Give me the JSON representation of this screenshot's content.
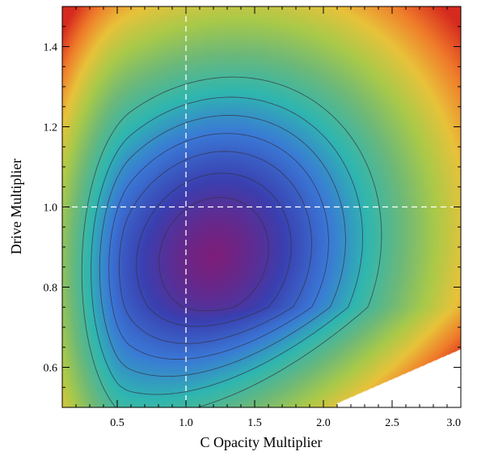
{
  "chart_data": {
    "type": "heatmap",
    "title": "",
    "xlabel": "C Opacity Multiplier",
    "ylabel": "Drive Multiplier",
    "xlim": [
      0.1,
      3.0
    ],
    "ylim": [
      0.5,
      1.5
    ],
    "x_ticks": [
      0.5,
      1.0,
      1.5,
      2.0,
      2.5,
      3.0
    ],
    "x_tick_labels": [
      "0.5",
      "1.0",
      "1.5",
      "2.0",
      "2.5",
      "3.0"
    ],
    "y_ticks": [
      0.6,
      0.8,
      1.0,
      1.2,
      1.4
    ],
    "y_tick_labels": [
      "0.6",
      "0.8",
      "1.0",
      "1.2",
      "1.4"
    ],
    "reference_lines": {
      "x": 1.0,
      "y": 1.0,
      "color": "#ffffff",
      "style": "dashed"
    },
    "colormap": [
      "#7b1e7a",
      "#3a3fb0",
      "#3a78d6",
      "#2fb6b0",
      "#6bb87a",
      "#a8c94a",
      "#e8c23a",
      "#ef7b2a",
      "#d62a1e"
    ],
    "minimum": {
      "x": 1.2,
      "y": 0.87
    },
    "contour_levels": [
      0.5,
      1.0,
      1.6,
      2.2,
      2.9,
      3.7,
      4.7
    ],
    "grid": false,
    "legend": "none",
    "notes": "Blank (white) region in the lower-right corner where no values are plotted."
  }
}
